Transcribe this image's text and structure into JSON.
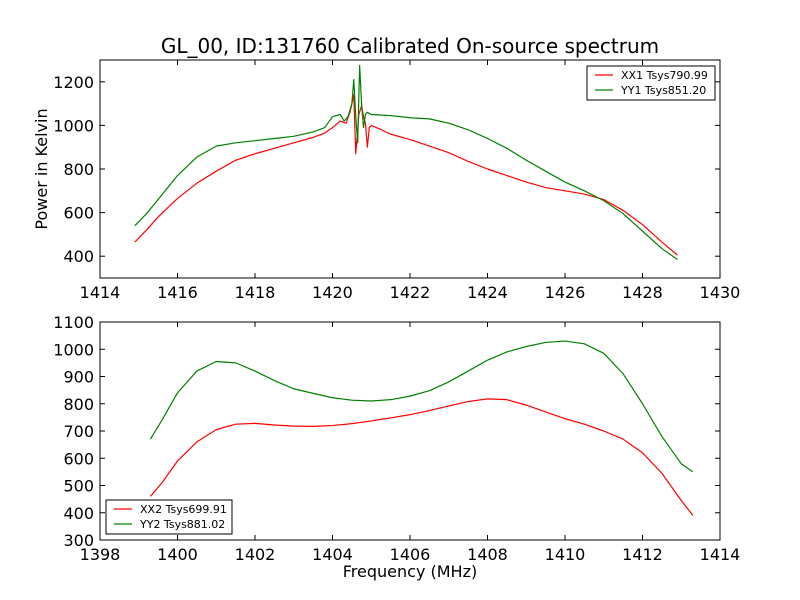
{
  "title": "GL_00, ID:131760 Calibrated On-source spectrum",
  "chart_data": [
    {
      "type": "line",
      "title": "GL_00, ID:131760 Calibrated On-source spectrum",
      "xlabel": "",
      "ylabel": "Power in Kelvin",
      "xlim": [
        1414,
        1430
      ],
      "ylim": [
        300,
        1300
      ],
      "xticks": [
        1414,
        1416,
        1418,
        1420,
        1422,
        1424,
        1426,
        1428,
        1430
      ],
      "yticks": [
        400,
        600,
        800,
        1000,
        1200
      ],
      "legend_position": "top-right",
      "grid": false,
      "series": [
        {
          "name": "XX1 Tsys790.99",
          "color": "#ff0000",
          "points": [
            [
              1414.9,
              465
            ],
            [
              1415.2,
              520
            ],
            [
              1415.5,
              580
            ],
            [
              1416.0,
              665
            ],
            [
              1416.5,
              735
            ],
            [
              1417.0,
              790
            ],
            [
              1417.5,
              840
            ],
            [
              1418.0,
              870
            ],
            [
              1418.5,
              895
            ],
            [
              1419.0,
              920
            ],
            [
              1419.5,
              945
            ],
            [
              1419.8,
              965
            ],
            [
              1420.0,
              990
            ],
            [
              1420.2,
              1020
            ],
            [
              1420.35,
              1010
            ],
            [
              1420.45,
              1060
            ],
            [
              1420.55,
              1140
            ],
            [
              1420.6,
              870
            ],
            [
              1420.68,
              1050
            ],
            [
              1420.75,
              1090
            ],
            [
              1420.8,
              1040
            ],
            [
              1420.85,
              1010
            ],
            [
              1420.9,
              900
            ],
            [
              1420.95,
              990
            ],
            [
              1421.0,
              1000
            ],
            [
              1421.2,
              985
            ],
            [
              1421.5,
              960
            ],
            [
              1422.0,
              935
            ],
            [
              1422.5,
              905
            ],
            [
              1423.0,
              875
            ],
            [
              1423.5,
              835
            ],
            [
              1424.0,
              800
            ],
            [
              1424.5,
              770
            ],
            [
              1425.0,
              740
            ],
            [
              1425.5,
              715
            ],
            [
              1426.0,
              700
            ],
            [
              1426.5,
              685
            ],
            [
              1427.0,
              660
            ],
            [
              1427.5,
              610
            ],
            [
              1428.0,
              545
            ],
            [
              1428.5,
              465
            ],
            [
              1428.9,
              405
            ]
          ]
        },
        {
          "name": "YY1 Tsys851.20",
          "color": "#008000",
          "points": [
            [
              1414.9,
              540
            ],
            [
              1415.2,
              595
            ],
            [
              1415.5,
              660
            ],
            [
              1416.0,
              770
            ],
            [
              1416.5,
              855
            ],
            [
              1417.0,
              905
            ],
            [
              1417.5,
              920
            ],
            [
              1418.0,
              930
            ],
            [
              1418.5,
              940
            ],
            [
              1419.0,
              950
            ],
            [
              1419.5,
              970
            ],
            [
              1419.8,
              990
            ],
            [
              1420.0,
              1040
            ],
            [
              1420.2,
              1050
            ],
            [
              1420.3,
              1020
            ],
            [
              1420.4,
              1040
            ],
            [
              1420.5,
              1100
            ],
            [
              1420.55,
              1210
            ],
            [
              1420.6,
              1040
            ],
            [
              1420.65,
              920
            ],
            [
              1420.7,
              1275
            ],
            [
              1420.75,
              1100
            ],
            [
              1420.8,
              990
            ],
            [
              1420.85,
              1050
            ],
            [
              1420.9,
              1060
            ],
            [
              1421.0,
              1050
            ],
            [
              1421.5,
              1045
            ],
            [
              1422.0,
              1035
            ],
            [
              1422.5,
              1030
            ],
            [
              1423.0,
              1010
            ],
            [
              1423.5,
              980
            ],
            [
              1424.0,
              940
            ],
            [
              1424.5,
              895
            ],
            [
              1425.0,
              840
            ],
            [
              1425.5,
              790
            ],
            [
              1426.0,
              740
            ],
            [
              1426.5,
              700
            ],
            [
              1427.0,
              655
            ],
            [
              1427.5,
              595
            ],
            [
              1428.0,
              515
            ],
            [
              1428.5,
              435
            ],
            [
              1428.9,
              385
            ]
          ]
        }
      ]
    },
    {
      "type": "line",
      "title": "",
      "xlabel": "Frequency (MHz)",
      "ylabel": "",
      "xlim": [
        1398,
        1414
      ],
      "ylim": [
        300,
        1100
      ],
      "xticks": [
        1398,
        1400,
        1402,
        1404,
        1406,
        1408,
        1410,
        1412,
        1414
      ],
      "yticks": [
        300,
        400,
        500,
        600,
        700,
        800,
        900,
        1000,
        1100
      ],
      "legend_position": "bottom-left",
      "grid": false,
      "series": [
        {
          "name": "XX2 Tsys699.91",
          "color": "#ff0000",
          "points": [
            [
              1399.3,
              460
            ],
            [
              1399.6,
              510
            ],
            [
              1400.0,
              590
            ],
            [
              1400.5,
              660
            ],
            [
              1401.0,
              705
            ],
            [
              1401.5,
              725
            ],
            [
              1402.0,
              728
            ],
            [
              1402.5,
              722
            ],
            [
              1403.0,
              718
            ],
            [
              1403.5,
              717
            ],
            [
              1404.0,
              720
            ],
            [
              1404.5,
              727
            ],
            [
              1405.0,
              737
            ],
            [
              1405.5,
              748
            ],
            [
              1406.0,
              760
            ],
            [
              1406.5,
              775
            ],
            [
              1407.0,
              792
            ],
            [
              1407.5,
              808
            ],
            [
              1408.0,
              818
            ],
            [
              1408.5,
              815
            ],
            [
              1409.0,
              795
            ],
            [
              1409.5,
              770
            ],
            [
              1410.0,
              745
            ],
            [
              1410.5,
              725
            ],
            [
              1411.0,
              700
            ],
            [
              1411.5,
              670
            ],
            [
              1412.0,
              620
            ],
            [
              1412.5,
              545
            ],
            [
              1413.0,
              445
            ],
            [
              1413.3,
              390
            ]
          ]
        },
        {
          "name": "YY2 Tsys881.02",
          "color": "#008000",
          "points": [
            [
              1399.3,
              670
            ],
            [
              1399.6,
              740
            ],
            [
              1400.0,
              840
            ],
            [
              1400.5,
              920
            ],
            [
              1401.0,
              955
            ],
            [
              1401.5,
              950
            ],
            [
              1402.0,
              920
            ],
            [
              1402.5,
              885
            ],
            [
              1403.0,
              855
            ],
            [
              1403.5,
              838
            ],
            [
              1404.0,
              822
            ],
            [
              1404.5,
              813
            ],
            [
              1405.0,
              810
            ],
            [
              1405.5,
              815
            ],
            [
              1406.0,
              828
            ],
            [
              1406.5,
              848
            ],
            [
              1407.0,
              880
            ],
            [
              1407.5,
              920
            ],
            [
              1408.0,
              960
            ],
            [
              1408.5,
              990
            ],
            [
              1409.0,
              1010
            ],
            [
              1409.5,
              1025
            ],
            [
              1410.0,
              1030
            ],
            [
              1410.5,
              1020
            ],
            [
              1411.0,
              985
            ],
            [
              1411.5,
              910
            ],
            [
              1412.0,
              800
            ],
            [
              1412.5,
              680
            ],
            [
              1413.0,
              580
            ],
            [
              1413.3,
              550
            ]
          ]
        }
      ]
    }
  ]
}
